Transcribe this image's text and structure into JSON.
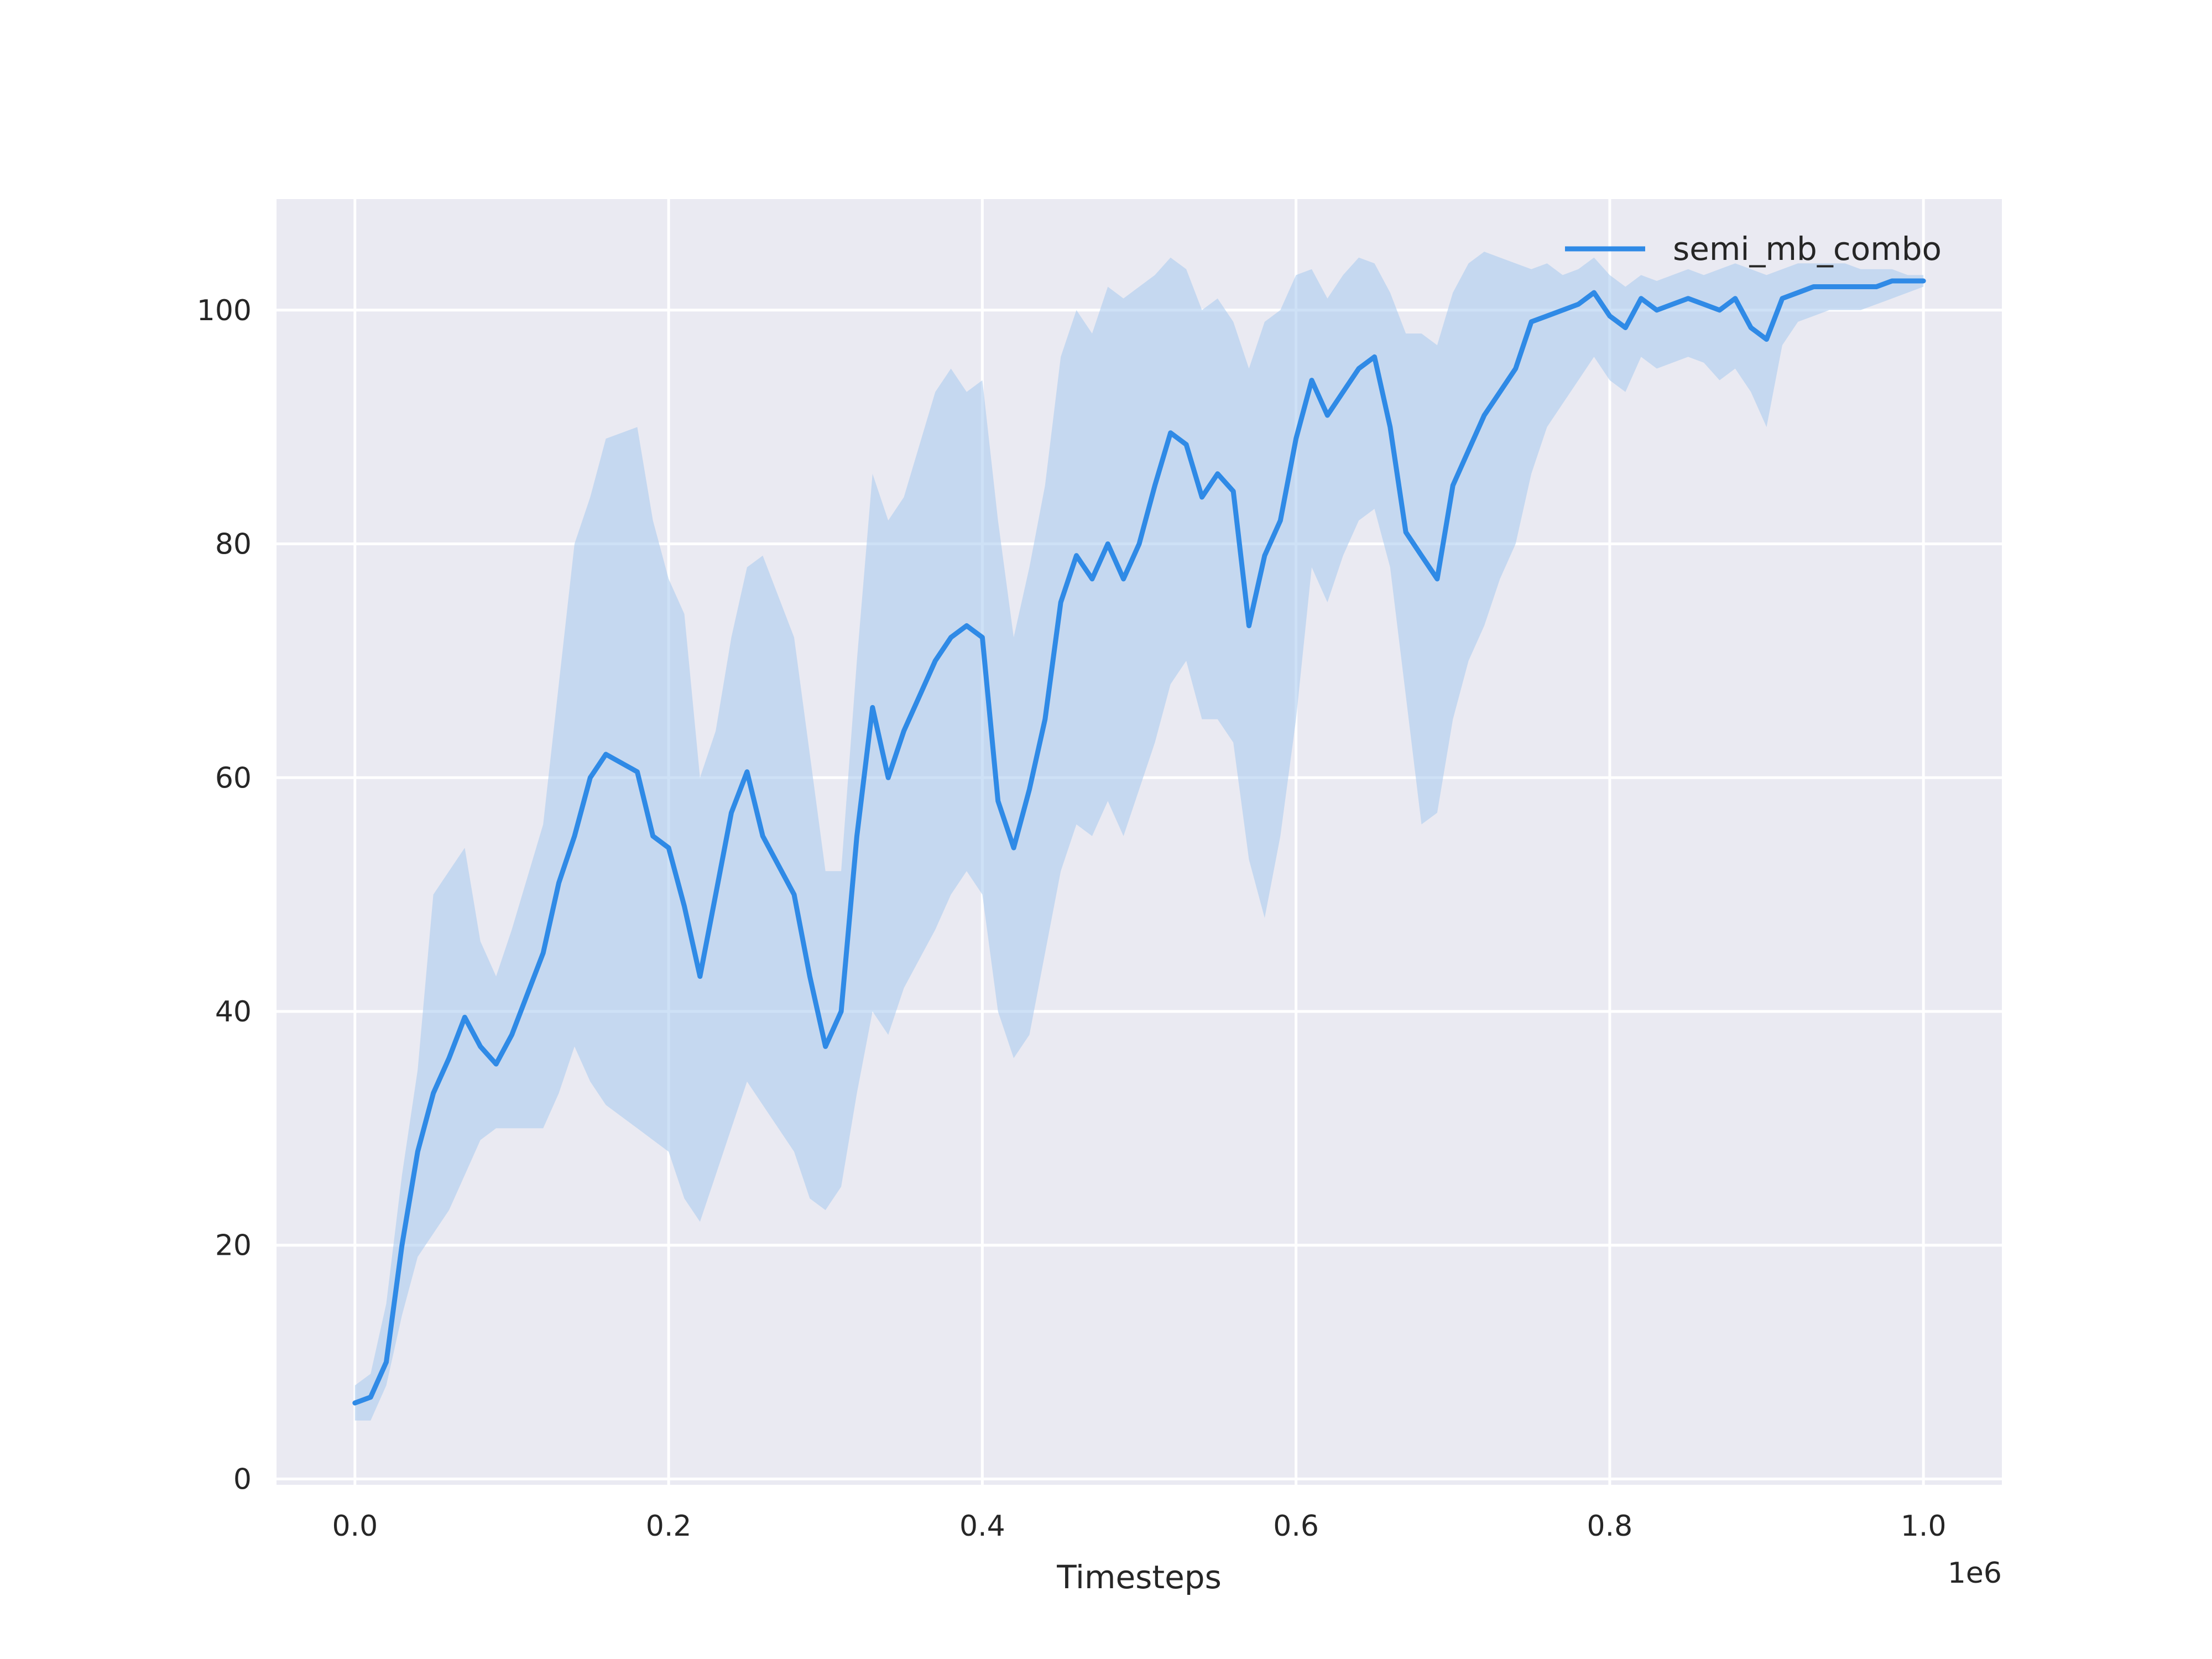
{
  "chart_data": {
    "type": "line",
    "title": "",
    "xlabel": "Timesteps",
    "ylabel": "",
    "x_offset_label": "1e6",
    "xlim": [
      -0.05,
      1.05
    ],
    "ylim": [
      -0.5,
      109.5
    ],
    "xticks": [
      0.0,
      0.2,
      0.4,
      0.6,
      0.8,
      1.0
    ],
    "xtick_labels": [
      "0.0",
      "0.2",
      "0.4",
      "0.6",
      "0.8",
      "1.0"
    ],
    "yticks": [
      0,
      20,
      40,
      60,
      80,
      100
    ],
    "ytick_labels": [
      "0",
      "20",
      "40",
      "60",
      "80",
      "100"
    ],
    "grid": true,
    "legend_position": "top-right",
    "colors": {
      "line": "#2f8ae6",
      "band": "#a6c8ef",
      "background": "#eaeaf2",
      "grid": "#ffffff"
    },
    "series": [
      {
        "name": "semi_mb_combo",
        "x": [
          0.0,
          0.01,
          0.02,
          0.03,
          0.04,
          0.05,
          0.06,
          0.07,
          0.08,
          0.09,
          0.1,
          0.12,
          0.13,
          0.14,
          0.15,
          0.16,
          0.18,
          0.19,
          0.2,
          0.21,
          0.22,
          0.23,
          0.24,
          0.25,
          0.26,
          0.28,
          0.29,
          0.3,
          0.31,
          0.32,
          0.33,
          0.34,
          0.35,
          0.37,
          0.38,
          0.39,
          0.4,
          0.41,
          0.42,
          0.43,
          0.44,
          0.45,
          0.46,
          0.47,
          0.48,
          0.49,
          0.5,
          0.51,
          0.52,
          0.53,
          0.54,
          0.55,
          0.56,
          0.57,
          0.58,
          0.59,
          0.6,
          0.61,
          0.62,
          0.63,
          0.64,
          0.65,
          0.66,
          0.67,
          0.68,
          0.69,
          0.7,
          0.71,
          0.72,
          0.73,
          0.74,
          0.75,
          0.76,
          0.77,
          0.78,
          0.79,
          0.8,
          0.81,
          0.82,
          0.83,
          0.84,
          0.85,
          0.86,
          0.87,
          0.88,
          0.89,
          0.9,
          0.91,
          0.92,
          0.93,
          0.94,
          0.95,
          0.96,
          0.97,
          0.98,
          0.99,
          1.0
        ],
        "y": [
          6.5,
          7.0,
          10.0,
          20.0,
          28.0,
          33.0,
          36.0,
          39.5,
          37.0,
          35.5,
          38.0,
          45.0,
          51.0,
          55.0,
          60.0,
          62.0,
          60.5,
          55.0,
          54.0,
          49.0,
          43.0,
          50.0,
          57.0,
          60.5,
          55.0,
          50.0,
          43.0,
          37.0,
          40.0,
          55.0,
          66.0,
          60.0,
          64.0,
          70.0,
          72.0,
          73.0,
          72.0,
          58.0,
          54.0,
          59.0,
          65.0,
          75.0,
          79.0,
          77.0,
          80.0,
          77.0,
          80.0,
          85.0,
          89.5,
          88.5,
          84.0,
          86.0,
          84.5,
          73.0,
          79.0,
          82.0,
          89.0,
          94.0,
          91.0,
          93.0,
          95.0,
          96.0,
          90.0,
          81.0,
          79.0,
          77.0,
          85.0,
          88.0,
          91.0,
          93.0,
          95.0,
          99.0,
          99.5,
          100.0,
          100.5,
          101.5,
          99.5,
          98.5,
          101.0,
          100.0,
          100.5,
          101.0,
          100.5,
          100.0,
          101.0,
          98.5,
          97.5,
          101.0,
          101.5,
          102.0,
          102.0,
          102.0,
          102.0,
          102.0,
          102.5,
          102.5,
          102.5
        ],
        "y_lower": [
          5.0,
          5.0,
          8.0,
          14.0,
          19.0,
          21.0,
          23.0,
          26.0,
          29.0,
          30.0,
          30.0,
          30.0,
          33.0,
          37.0,
          34.0,
          32.0,
          30.0,
          29.0,
          28.0,
          24.0,
          22.0,
          26.0,
          30.0,
          34.0,
          32.0,
          28.0,
          24.0,
          23.0,
          25.0,
          33.0,
          40.0,
          38.0,
          42.0,
          47.0,
          50.0,
          52.0,
          50.0,
          40.0,
          36.0,
          38.0,
          45.0,
          52.0,
          56.0,
          55.0,
          58.0,
          55.0,
          59.0,
          63.0,
          68.0,
          70.0,
          65.0,
          65.0,
          63.0,
          53.0,
          48.0,
          55.0,
          65.0,
          78.0,
          75.0,
          79.0,
          82.0,
          83.0,
          78.0,
          67.0,
          56.0,
          57.0,
          65.0,
          70.0,
          73.0,
          77.0,
          80.0,
          86.0,
          90.0,
          92.0,
          94.0,
          96.0,
          94.0,
          93.0,
          96.0,
          95.0,
          95.5,
          96.0,
          95.5,
          94.0,
          95.0,
          93.0,
          90.0,
          97.0,
          99.0,
          99.5,
          100.0,
          100.0,
          100.0,
          100.5,
          101.0,
          101.5,
          102.0
        ],
        "y_upper": [
          8.0,
          9.0,
          15.0,
          26.0,
          35.0,
          50.0,
          52.0,
          54.0,
          46.0,
          43.0,
          47.0,
          56.0,
          68.0,
          80.0,
          84.0,
          89.0,
          90.0,
          82.0,
          77.0,
          74.0,
          60.0,
          64.0,
          72.0,
          78.0,
          79.0,
          72.0,
          62.0,
          52.0,
          52.0,
          70.0,
          86.0,
          82.0,
          84.0,
          93.0,
          95.0,
          93.0,
          94.0,
          82.0,
          72.0,
          78.0,
          85.0,
          96.0,
          100.0,
          98.0,
          102.0,
          101.0,
          102.0,
          103.0,
          104.5,
          103.5,
          100.0,
          101.0,
          99.0,
          95.0,
          99.0,
          100.0,
          103.0,
          103.5,
          101.0,
          103.0,
          104.5,
          104.0,
          101.5,
          98.0,
          98.0,
          97.0,
          101.5,
          104.0,
          105.0,
          104.5,
          104.0,
          103.5,
          104.0,
          103.0,
          103.5,
          104.5,
          103.0,
          102.0,
          103.0,
          102.5,
          103.0,
          103.5,
          103.0,
          103.5,
          104.0,
          103.5,
          103.0,
          103.5,
          104.0,
          104.0,
          104.0,
          104.0,
          103.5,
          103.5,
          103.5,
          103.0,
          103.0
        ]
      }
    ]
  }
}
